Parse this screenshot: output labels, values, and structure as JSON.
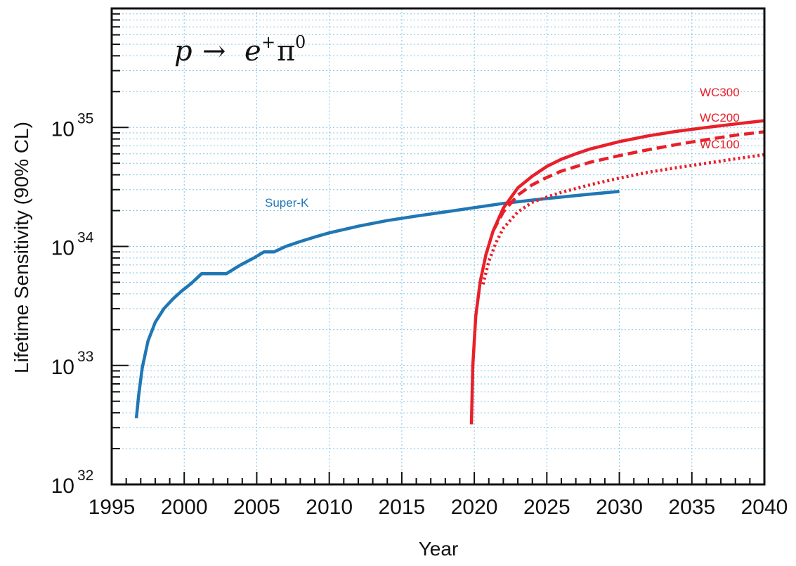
{
  "chart_data": {
    "type": "line",
    "annotation": {
      "lhs": "p",
      "arrow": "→",
      "e": "e",
      "e_sup": "+",
      "pi": "π",
      "pi_sup": "0"
    },
    "xlabel": "Year",
    "ylabel": "Lifetime Sensitivity (90% CL)",
    "xlim": [
      1995,
      2040
    ],
    "ylim": [
      1e+32,
      1e+36
    ],
    "yscale": "log",
    "grid": true,
    "x_ticks": [
      "1995",
      "2000",
      "2005",
      "2010",
      "2015",
      "2020",
      "2025",
      "2030",
      "2035",
      "2040"
    ],
    "y_ticks": [
      {
        "base": "10",
        "exp": "32"
      },
      {
        "base": "10",
        "exp": "33"
      },
      {
        "base": "10",
        "exp": "34"
      },
      {
        "base": "10",
        "exp": "35"
      }
    ],
    "series": [
      {
        "name": "Super-K",
        "color": "#1f77b4",
        "style": "solid",
        "points": [
          [
            1996.7,
            3.6e+32
          ],
          [
            1996.85,
            5.5e+32
          ],
          [
            1997.1,
            9.5e+32
          ],
          [
            1997.5,
            1.6e+33
          ],
          [
            1998.0,
            2.3e+33
          ],
          [
            1998.6,
            3e+33
          ],
          [
            1999.2,
            3.6e+33
          ],
          [
            1999.8,
            4.2e+33
          ],
          [
            2000.5,
            4.9e+33
          ],
          [
            2001.2,
            5.9e+33
          ],
          [
            2002.0,
            5.9e+33
          ],
          [
            2002.9,
            5.9e+33
          ],
          [
            2003.8,
            6.9e+33
          ],
          [
            2004.8,
            8e+33
          ],
          [
            2005.5,
            9e+33
          ],
          [
            2006.2,
            9e+33
          ],
          [
            2007.0,
            1e+34
          ],
          [
            2008.0,
            1.1e+34
          ],
          [
            2009.0,
            1.2e+34
          ],
          [
            2010.0,
            1.3e+34
          ],
          [
            2012.0,
            1.48e+34
          ],
          [
            2014.0,
            1.65e+34
          ],
          [
            2016.0,
            1.8e+34
          ],
          [
            2018.0,
            1.95e+34
          ],
          [
            2020.0,
            2.12e+34
          ],
          [
            2022.0,
            2.3e+34
          ],
          [
            2024.0,
            2.45e+34
          ],
          [
            2026.0,
            2.6e+34
          ],
          [
            2028.0,
            2.75e+34
          ],
          [
            2030.0,
            2.9e+34
          ]
        ]
      },
      {
        "name": "WC300",
        "color": "#e8202a",
        "style": "solid",
        "points": [
          [
            2019.8,
            3.2e+32
          ],
          [
            2019.9,
            1e+33
          ],
          [
            2020.1,
            2.6e+33
          ],
          [
            2020.4,
            5e+33
          ],
          [
            2020.8,
            8.5e+33
          ],
          [
            2021.3,
            1.35e+34
          ],
          [
            2022.0,
            2.1e+34
          ],
          [
            2023.0,
            3.1e+34
          ],
          [
            2024.0,
            3.9e+34
          ],
          [
            2025.0,
            4.7e+34
          ],
          [
            2026.0,
            5.4e+34
          ],
          [
            2027.0,
            6e+34
          ],
          [
            2028.0,
            6.6e+34
          ],
          [
            2030.0,
            7.6e+34
          ],
          [
            2032.0,
            8.5e+34
          ],
          [
            2034.0,
            9.3e+34
          ],
          [
            2036.0,
            1e+35
          ],
          [
            2038.0,
            1.07e+35
          ],
          [
            2040.0,
            1.14e+35
          ]
        ]
      },
      {
        "name": "WC200",
        "color": "#e8202a",
        "style": "dashed",
        "points": [
          [
            2021.3,
            1.35e+34
          ],
          [
            2022.0,
            1.95e+34
          ],
          [
            2023.0,
            2.7e+34
          ],
          [
            2024.0,
            3.3e+34
          ],
          [
            2025.0,
            3.8e+34
          ],
          [
            2026.0,
            4.3e+34
          ],
          [
            2028.0,
            5.1e+34
          ],
          [
            2030.0,
            5.8e+34
          ],
          [
            2032.0,
            6.5e+34
          ],
          [
            2034.0,
            7.2e+34
          ],
          [
            2036.0,
            7.9e+34
          ],
          [
            2038.0,
            8.6e+34
          ],
          [
            2040.0,
            9.2e+34
          ]
        ]
      },
      {
        "name": "WC100",
        "color": "#e8202a",
        "style": "dotted",
        "points": [
          [
            2020.6,
            4.8e+33
          ],
          [
            2021.0,
            7.5e+33
          ],
          [
            2021.5,
            1.08e+34
          ],
          [
            2022.0,
            1.42e+34
          ],
          [
            2023.0,
            1.95e+34
          ],
          [
            2024.0,
            2.35e+34
          ],
          [
            2025.0,
            2.6e+34
          ],
          [
            2026.0,
            2.85e+34
          ],
          [
            2028.0,
            3.3e+34
          ],
          [
            2030.0,
            3.75e+34
          ],
          [
            2032.0,
            4.2e+34
          ],
          [
            2034.0,
            4.6e+34
          ],
          [
            2036.0,
            5e+34
          ],
          [
            2038.0,
            5.45e+34
          ],
          [
            2040.0,
            5.9e+34
          ]
        ]
      }
    ]
  }
}
